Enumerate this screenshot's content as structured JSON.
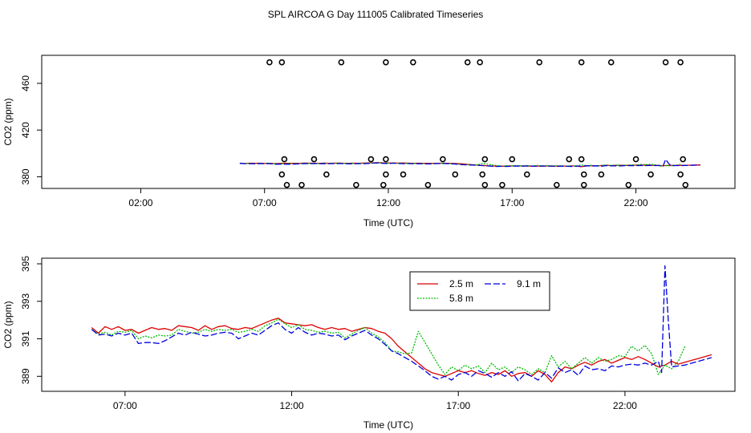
{
  "chart_data": {
    "title": "SPL AIRCOA G  Day 111005  Calibrated Timeseries",
    "panels": [
      {
        "type": "scatter",
        "xlabel": "Time (UTC)",
        "ylabel": "CO2 (ppm)",
        "xlim": [
          -2.0,
          26.0
        ],
        "ylim": [
          370,
          484
        ],
        "xticks": [
          2,
          7,
          12,
          17,
          22
        ],
        "xtick_labels": [
          "02:00",
          "07:00",
          "12:00",
          "17:00",
          "22:00"
        ],
        "yticks": [
          380,
          420,
          460
        ],
        "ytick_labels": [
          "380",
          "420",
          "460"
        ],
        "calibration_points": [
          {
            "x": 7.2,
            "y": 478
          },
          {
            "x": 7.7,
            "y": 478
          },
          {
            "x": 10.1,
            "y": 478
          },
          {
            "x": 11.9,
            "y": 478
          },
          {
            "x": 13.0,
            "y": 478
          },
          {
            "x": 15.2,
            "y": 478
          },
          {
            "x": 15.7,
            "y": 478
          },
          {
            "x": 18.1,
            "y": 478
          },
          {
            "x": 19.8,
            "y": 478
          },
          {
            "x": 21.0,
            "y": 478
          },
          {
            "x": 23.2,
            "y": 478
          },
          {
            "x": 23.8,
            "y": 478
          },
          {
            "x": 7.8,
            "y": 395
          },
          {
            "x": 9.0,
            "y": 395
          },
          {
            "x": 11.3,
            "y": 395
          },
          {
            "x": 11.9,
            "y": 395
          },
          {
            "x": 14.2,
            "y": 395
          },
          {
            "x": 15.9,
            "y": 395
          },
          {
            "x": 17.0,
            "y": 395
          },
          {
            "x": 19.3,
            "y": 395
          },
          {
            "x": 19.8,
            "y": 395
          },
          {
            "x": 22.0,
            "y": 395
          },
          {
            "x": 23.9,
            "y": 395
          },
          {
            "x": 7.7,
            "y": 382
          },
          {
            "x": 9.5,
            "y": 382
          },
          {
            "x": 11.9,
            "y": 382
          },
          {
            "x": 12.6,
            "y": 382
          },
          {
            "x": 14.7,
            "y": 382
          },
          {
            "x": 15.8,
            "y": 382
          },
          {
            "x": 17.6,
            "y": 382
          },
          {
            "x": 19.9,
            "y": 382
          },
          {
            "x": 20.6,
            "y": 382
          },
          {
            "x": 22.6,
            "y": 382
          },
          {
            "x": 23.8,
            "y": 382
          },
          {
            "x": 7.9,
            "y": 373
          },
          {
            "x": 8.5,
            "y": 373
          },
          {
            "x": 10.7,
            "y": 373
          },
          {
            "x": 11.8,
            "y": 373
          },
          {
            "x": 13.6,
            "y": 373
          },
          {
            "x": 15.9,
            "y": 373
          },
          {
            "x": 16.6,
            "y": 373
          },
          {
            "x": 18.8,
            "y": 373
          },
          {
            "x": 19.9,
            "y": 373
          },
          {
            "x": 21.7,
            "y": 373
          },
          {
            "x": 24.0,
            "y": 373
          }
        ]
      },
      {
        "type": "line",
        "xlabel": "Time (UTC)",
        "ylabel": "CO2 (ppm)",
        "xlim": [
          4.5,
          25.3
        ],
        "ylim": [
          388.2,
          395.3
        ],
        "xticks": [
          7,
          12,
          17,
          22
        ],
        "xtick_labels": [
          "07:00",
          "12:00",
          "17:00",
          "22:00"
        ],
        "yticks": [
          389,
          391,
          393,
          395
        ],
        "ytick_labels": [
          "389",
          "391",
          "393",
          "395"
        ],
        "legend": {
          "position": "top-center",
          "entries": [
            "2.5 m",
            "5.8 m",
            "9.1 m"
          ]
        }
      }
    ],
    "series": [
      {
        "name": "2.5 m",
        "color": "#dd0000",
        "x": [
          6.0,
          6.2,
          6.4,
          6.6,
          6.8,
          7.0,
          7.2,
          7.4,
          7.6,
          7.8,
          8.0,
          8.2,
          8.4,
          8.6,
          8.8,
          9.0,
          9.2,
          9.4,
          9.6,
          9.8,
          10.0,
          10.2,
          10.4,
          10.6,
          10.8,
          11.0,
          11.2,
          11.4,
          11.6,
          11.8,
          12.0,
          12.2,
          12.4,
          12.6,
          12.8,
          13.0,
          13.2,
          13.4,
          13.6,
          13.8,
          14.0,
          14.2,
          14.4,
          14.6,
          14.8,
          15.0,
          15.2,
          15.4,
          15.6,
          15.8,
          16.0,
          16.2,
          16.4,
          16.6,
          16.8,
          17.0,
          17.2,
          17.4,
          17.6,
          17.8,
          18.0,
          18.2,
          18.4,
          18.6,
          18.8,
          19.0,
          19.2,
          19.4,
          19.6,
          19.8,
          20.0,
          20.2,
          20.4,
          20.6,
          20.8,
          21.0,
          21.2,
          21.4,
          21.6,
          21.8,
          22.0,
          22.2,
          22.4,
          22.6,
          22.8,
          23.0,
          23.2,
          23.4,
          23.6,
          23.8,
          24.0,
          24.2,
          24.4,
          24.6
        ],
        "y": [
          391.6,
          391.3,
          391.65,
          391.5,
          391.65,
          391.45,
          391.5,
          391.3,
          391.45,
          391.6,
          391.5,
          391.55,
          391.45,
          391.7,
          391.65,
          391.6,
          391.45,
          391.7,
          391.5,
          391.65,
          391.7,
          391.55,
          391.5,
          391.6,
          391.55,
          391.7,
          391.85,
          392.0,
          392.1,
          391.85,
          391.8,
          391.75,
          391.7,
          391.75,
          391.6,
          391.5,
          391.6,
          391.5,
          391.55,
          391.4,
          391.5,
          391.6,
          391.55,
          391.4,
          391.3,
          391.0,
          390.6,
          390.3,
          390.0,
          389.7,
          389.4,
          389.2,
          389.1,
          389.0,
          389.15,
          389.3,
          389.2,
          389.3,
          389.15,
          389.05,
          389.2,
          389.1,
          389.3,
          389.0,
          389.15,
          389.2,
          389.0,
          389.3,
          389.1,
          388.7,
          389.2,
          389.5,
          389.4,
          389.6,
          389.75,
          389.6,
          389.8,
          389.9,
          389.7,
          389.85,
          390.0,
          389.9,
          390.05,
          389.9,
          389.7,
          389.5,
          389.6,
          389.8,
          389.65,
          389.75,
          389.85,
          389.95,
          390.05,
          390.15
        ]
      },
      {
        "name": "5.8 m",
        "color": "#00bb00",
        "x": [
          6.0,
          6.2,
          6.4,
          6.6,
          6.8,
          7.0,
          7.2,
          7.4,
          7.6,
          7.8,
          8.0,
          8.2,
          8.4,
          8.6,
          8.8,
          9.0,
          9.2,
          9.4,
          9.6,
          9.8,
          10.0,
          10.2,
          10.4,
          10.6,
          10.8,
          11.0,
          11.2,
          11.4,
          11.6,
          11.8,
          12.0,
          12.2,
          12.4,
          12.6,
          12.8,
          13.0,
          13.2,
          13.4,
          13.6,
          13.8,
          14.0,
          14.2,
          14.4,
          14.6,
          14.8,
          15.0,
          15.2,
          15.4,
          15.6,
          15.8,
          16.0,
          16.2,
          16.4,
          16.6,
          16.8,
          17.0,
          17.2,
          17.4,
          17.6,
          17.8,
          18.0,
          18.2,
          18.4,
          18.6,
          18.8,
          19.0,
          19.2,
          19.4,
          19.6,
          19.8,
          20.0,
          20.2,
          20.4,
          20.6,
          20.8,
          21.0,
          21.2,
          21.4,
          21.6,
          21.8,
          22.0,
          22.2,
          22.4,
          22.6,
          22.8,
          23.0,
          23.2,
          23.4,
          23.6,
          23.8
        ],
        "y": [
          391.5,
          391.25,
          391.35,
          391.2,
          391.4,
          391.35,
          391.45,
          391.0,
          391.15,
          391.05,
          391.2,
          391.15,
          391.2,
          391.5,
          391.4,
          391.3,
          391.35,
          391.5,
          391.4,
          391.5,
          391.45,
          391.5,
          391.35,
          391.4,
          391.5,
          391.4,
          391.7,
          391.85,
          392.05,
          391.8,
          391.6,
          391.75,
          391.5,
          391.45,
          391.35,
          391.4,
          391.3,
          391.35,
          391.05,
          391.25,
          391.45,
          391.6,
          391.3,
          391.1,
          390.8,
          390.35,
          390.3,
          390.2,
          390.25,
          391.4,
          390.8,
          390.2,
          389.6,
          389.1,
          389.5,
          389.3,
          389.6,
          389.4,
          389.55,
          389.2,
          389.7,
          389.35,
          389.5,
          389.2,
          389.5,
          389.35,
          389.1,
          389.4,
          389.2,
          390.1,
          389.5,
          389.8,
          389.4,
          389.7,
          390.0,
          389.7,
          390.0,
          389.8,
          389.9,
          390.1,
          390.05,
          390.6,
          390.35,
          390.65,
          390.2,
          389.1,
          389.6,
          389.4,
          389.8,
          390.6
        ]
      },
      {
        "name": "9.1 m",
        "color": "#0000dd",
        "x": [
          6.0,
          6.2,
          6.4,
          6.6,
          6.8,
          7.0,
          7.2,
          7.4,
          7.6,
          7.8,
          8.0,
          8.2,
          8.4,
          8.6,
          8.8,
          9.0,
          9.2,
          9.4,
          9.6,
          9.8,
          10.0,
          10.2,
          10.4,
          10.6,
          10.8,
          11.0,
          11.2,
          11.4,
          11.6,
          11.8,
          12.0,
          12.2,
          12.4,
          12.6,
          12.8,
          13.0,
          13.2,
          13.4,
          13.6,
          13.8,
          14.0,
          14.2,
          14.4,
          14.6,
          14.8,
          15.0,
          15.2,
          15.4,
          15.6,
          15.8,
          16.0,
          16.2,
          16.4,
          16.6,
          16.8,
          17.0,
          17.2,
          17.4,
          17.6,
          17.8,
          18.0,
          18.2,
          18.4,
          18.6,
          18.8,
          19.0,
          19.2,
          19.4,
          19.6,
          19.8,
          20.0,
          20.2,
          20.4,
          20.6,
          20.8,
          21.0,
          21.2,
          21.4,
          21.6,
          21.8,
          22.0,
          22.2,
          22.4,
          22.6,
          22.8,
          23.0,
          23.1,
          23.2,
          23.3,
          23.4,
          23.6,
          23.8,
          24.0,
          24.2,
          24.4,
          24.6
        ],
        "y": [
          391.5,
          391.2,
          391.25,
          391.15,
          391.3,
          391.2,
          391.3,
          390.75,
          390.8,
          390.8,
          390.75,
          390.9,
          391.1,
          391.3,
          391.2,
          391.35,
          391.25,
          391.15,
          391.2,
          391.3,
          391.35,
          391.3,
          391.0,
          391.15,
          391.3,
          391.2,
          391.45,
          391.7,
          391.85,
          391.5,
          391.3,
          391.6,
          391.35,
          391.2,
          391.3,
          391.25,
          391.15,
          391.2,
          390.95,
          391.15,
          391.3,
          391.45,
          391.2,
          391.0,
          390.7,
          390.35,
          390.2,
          390.0,
          389.8,
          389.55,
          389.3,
          389.0,
          388.85,
          389.0,
          388.8,
          389.1,
          389.2,
          389.0,
          389.3,
          389.15,
          388.95,
          389.2,
          389.0,
          389.25,
          388.75,
          389.15,
          389.0,
          388.8,
          389.2,
          388.9,
          389.45,
          389.2,
          389.35,
          389.05,
          389.55,
          389.35,
          389.4,
          389.3,
          389.55,
          389.5,
          389.6,
          389.65,
          389.6,
          389.7,
          389.6,
          389.8,
          389.2,
          394.9,
          392.0,
          389.5,
          389.55,
          389.6,
          389.7,
          389.8,
          389.9,
          390.0
        ]
      }
    ]
  }
}
